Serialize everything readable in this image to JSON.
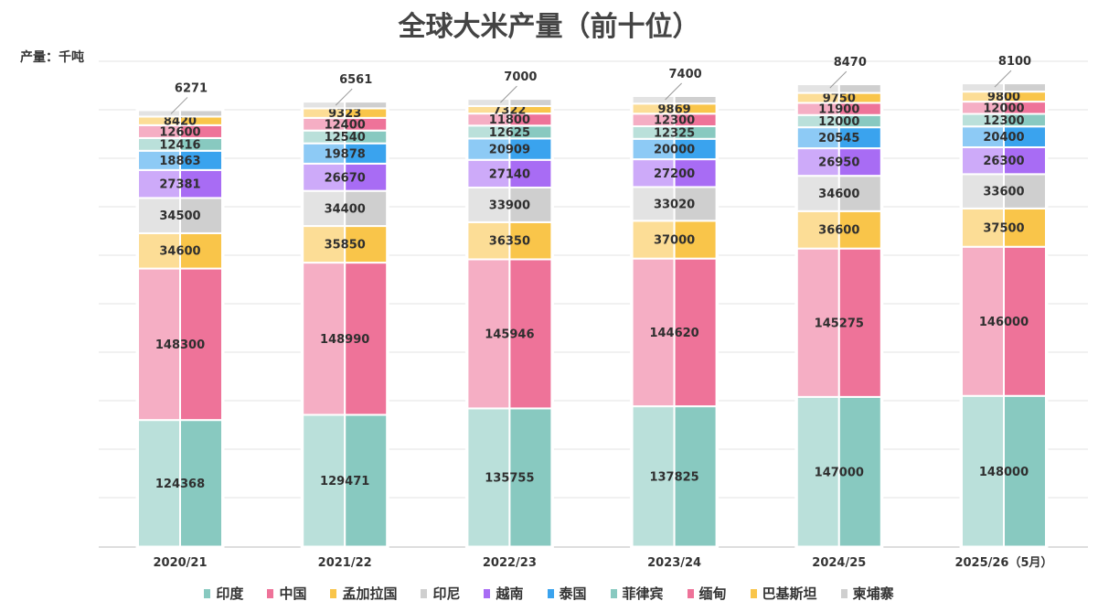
{
  "chart_data": {
    "type": "bar",
    "stacked": true,
    "title": "全球大米产量（前十位）",
    "ylabel": "产量：千吨",
    "xlabel": "",
    "grid": true,
    "legend_position": "bottom",
    "categories": [
      "2020/21",
      "2021/22",
      "2022/23",
      "2023/24",
      "2024/25",
      "2025/26（5月）"
    ],
    "series": [
      {
        "name": "印度",
        "color": "#88c9c0",
        "values": [
          124368,
          129471,
          135755,
          137825,
          147000,
          148000
        ]
      },
      {
        "name": "中国",
        "color": "#ee7399",
        "values": [
          148300,
          148990,
          145946,
          144620,
          145275,
          146000
        ]
      },
      {
        "name": "孟加拉国",
        "color": "#f9c54a",
        "values": [
          34600,
          35850,
          36350,
          37000,
          36600,
          37500
        ]
      },
      {
        "name": "印尼",
        "color": "#cfcfcf",
        "values": [
          34500,
          34400,
          33900,
          33020,
          34600,
          33600
        ]
      },
      {
        "name": "越南",
        "color": "#a86cf4",
        "values": [
          27381,
          26670,
          27140,
          27200,
          26950,
          26300
        ]
      },
      {
        "name": "泰国",
        "color": "#3aa3ee",
        "values": [
          18863,
          19878,
          20909,
          20000,
          20545,
          20400
        ]
      },
      {
        "name": "菲律宾",
        "color": "#88c9c0",
        "values": [
          12416,
          12540,
          12625,
          12325,
          12000,
          12300
        ]
      },
      {
        "name": "缅甸",
        "color": "#ee7399",
        "values": [
          12600,
          12400,
          11800,
          12300,
          11900,
          12000
        ]
      },
      {
        "name": "巴基斯坦",
        "color": "#f9c54a",
        "values": [
          8420,
          9323,
          7322,
          9869,
          9750,
          9800
        ]
      },
      {
        "name": "柬埔寨",
        "color": "#cfcfcf",
        "values": [
          6271,
          6561,
          7000,
          7400,
          8470,
          8100
        ]
      }
    ]
  }
}
